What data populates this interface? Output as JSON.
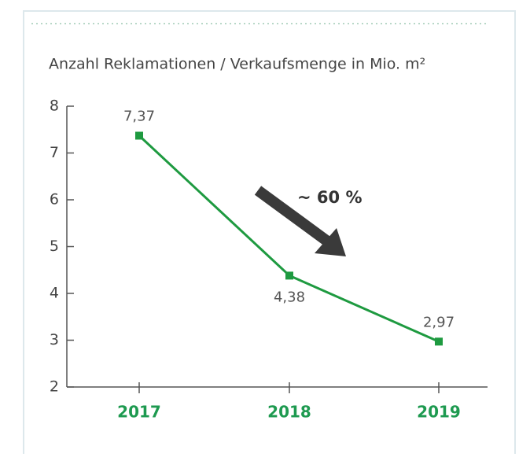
{
  "chart_data": {
    "type": "line",
    "title": "Anzahl Reklamationen / Verkaufsmenge in Mio. m²",
    "categories": [
      "2017",
      "2018",
      "2019"
    ],
    "values": [
      7.37,
      4.38,
      2.97
    ],
    "value_labels": [
      "7,37",
      "4,38",
      "2,97"
    ],
    "color": "#1e9a40",
    "ylim": [
      2,
      8
    ],
    "yticks": [
      2,
      3,
      4,
      5,
      6,
      7,
      8
    ],
    "annotation": "~ 60 %"
  }
}
